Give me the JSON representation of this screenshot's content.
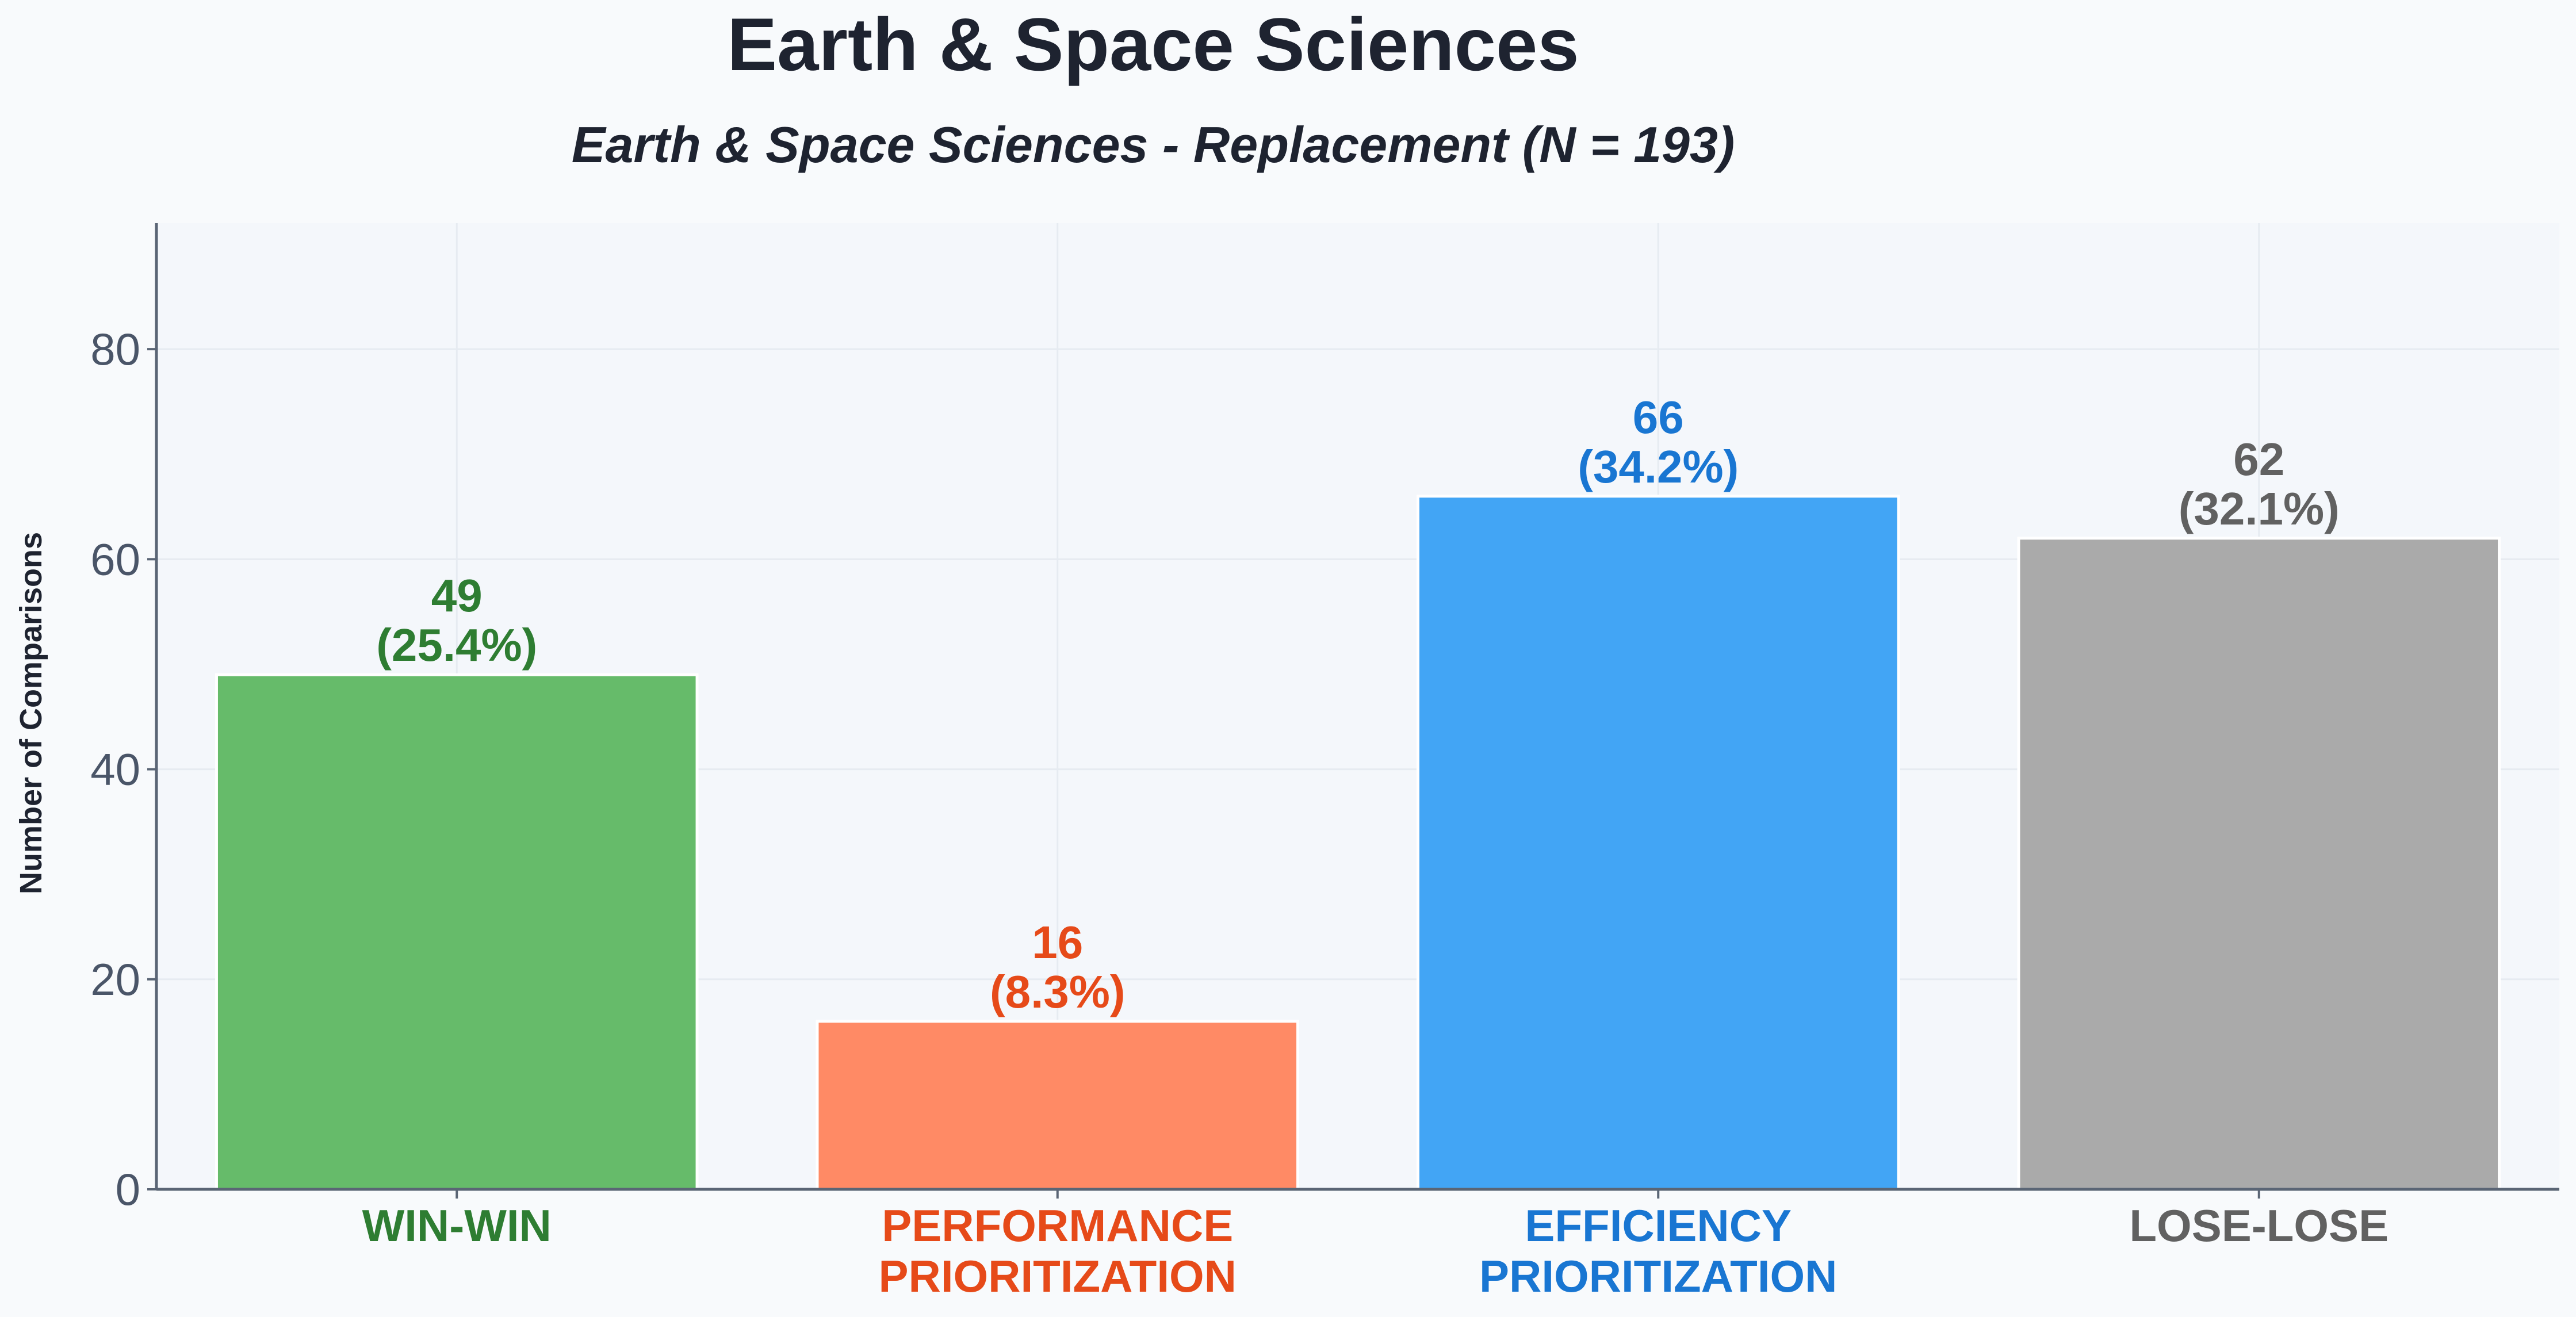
{
  "chart_data": {
    "type": "bar",
    "title": "Earth & Space Sciences",
    "subtitle": "Earth & Space Sciences - Replacement (N = 193)",
    "xlabel": "",
    "ylabel": "Number of Comparisons",
    "ylim": [
      0,
      92
    ],
    "yticks": [
      0,
      20,
      40,
      60,
      80
    ],
    "grid": true,
    "categories": [
      [
        "WIN-WIN"
      ],
      [
        "PERFORMANCE",
        "PRIORITIZATION"
      ],
      [
        "EFFICIENCY",
        "PRIORITIZATION"
      ],
      [
        "LOSE-LOSE"
      ]
    ],
    "values": [
      49,
      16,
      66,
      62
    ],
    "value_labels": [
      "49",
      "16",
      "66",
      "62"
    ],
    "percent_labels": [
      "(25.4%)",
      "(8.3%)",
      "(34.2%)",
      "(32.1%)"
    ],
    "bar_colors": [
      "#66bb6a",
      "#ff8a65",
      "#42a5f5",
      "#aaaaaa"
    ],
    "label_colors": [
      "#2e7d32",
      "#e64a19",
      "#1976d2",
      "#616161"
    ]
  }
}
